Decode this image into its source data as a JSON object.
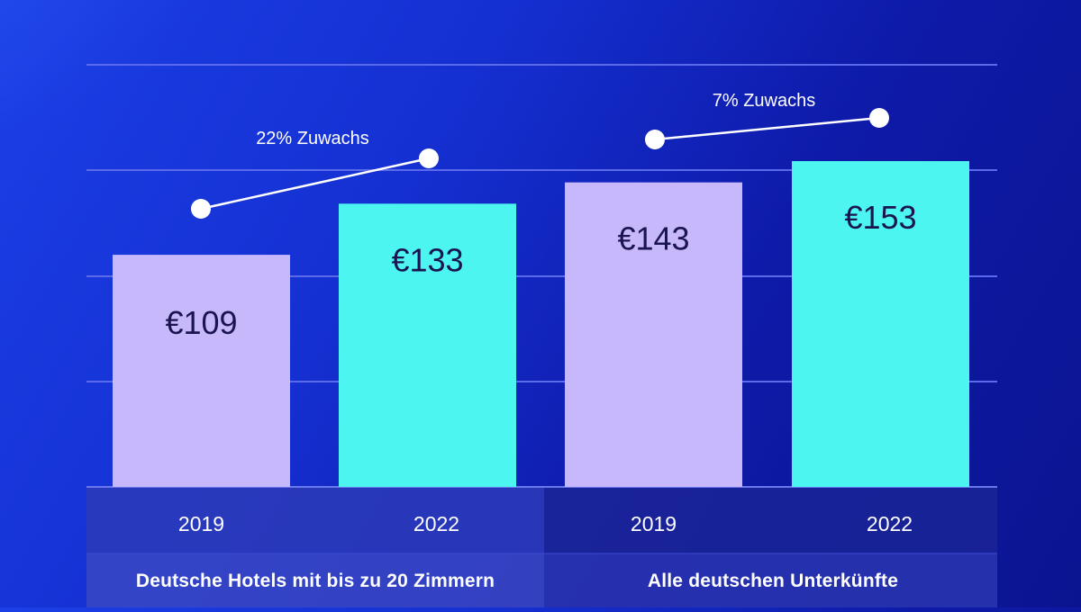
{
  "chart_data": {
    "type": "bar",
    "currency": "€",
    "groups": [
      {
        "label": "Deutsche Hotels mit bis zu 20 Zimmern",
        "bars": [
          {
            "year": "2019",
            "value": 109,
            "label": "€109"
          },
          {
            "year": "2022",
            "value": 133,
            "label": "€133"
          }
        ],
        "growth_label": "22% Zuwachs"
      },
      {
        "label": "Alle deutschen Unterkünfte",
        "bars": [
          {
            "year": "2019",
            "value": 143,
            "label": "€143"
          },
          {
            "year": "2022",
            "value": 153,
            "label": "€153"
          }
        ],
        "growth_label": "7% Zuwachs"
      }
    ],
    "grid": true,
    "colors": {
      "2019": "#c6b8fa",
      "2022": "#4cf5f0",
      "value_text": "#1a1450",
      "axis_text": "#ffffff",
      "gridline": "#5a6ae8",
      "trend_line": "#ffffff"
    }
  }
}
